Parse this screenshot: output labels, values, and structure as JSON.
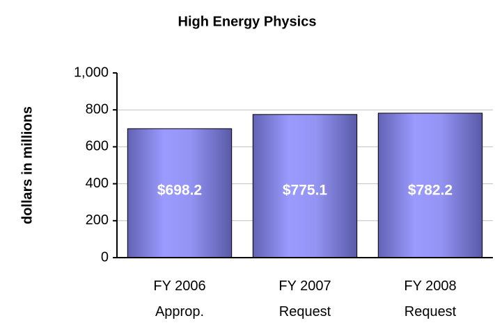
{
  "chart_data": {
    "type": "bar",
    "title": "High Energy Physics",
    "y_label": "dollars in millions",
    "categories": [
      "FY 2006\nApprop.",
      "FY 2007\nRequest",
      "FY 2008\nRequest"
    ],
    "values": [
      698.2,
      775.1,
      782.2
    ],
    "value_labels": [
      "$698.2",
      "$775.1",
      "$782.2"
    ],
    "color": "#9999ff",
    "ylim": [
      0,
      1000
    ],
    "yticks": [
      0,
      200,
      400,
      600,
      800,
      {
        "value": 1000,
        "label": "1,000"
      }
    ],
    "grid": true
  }
}
